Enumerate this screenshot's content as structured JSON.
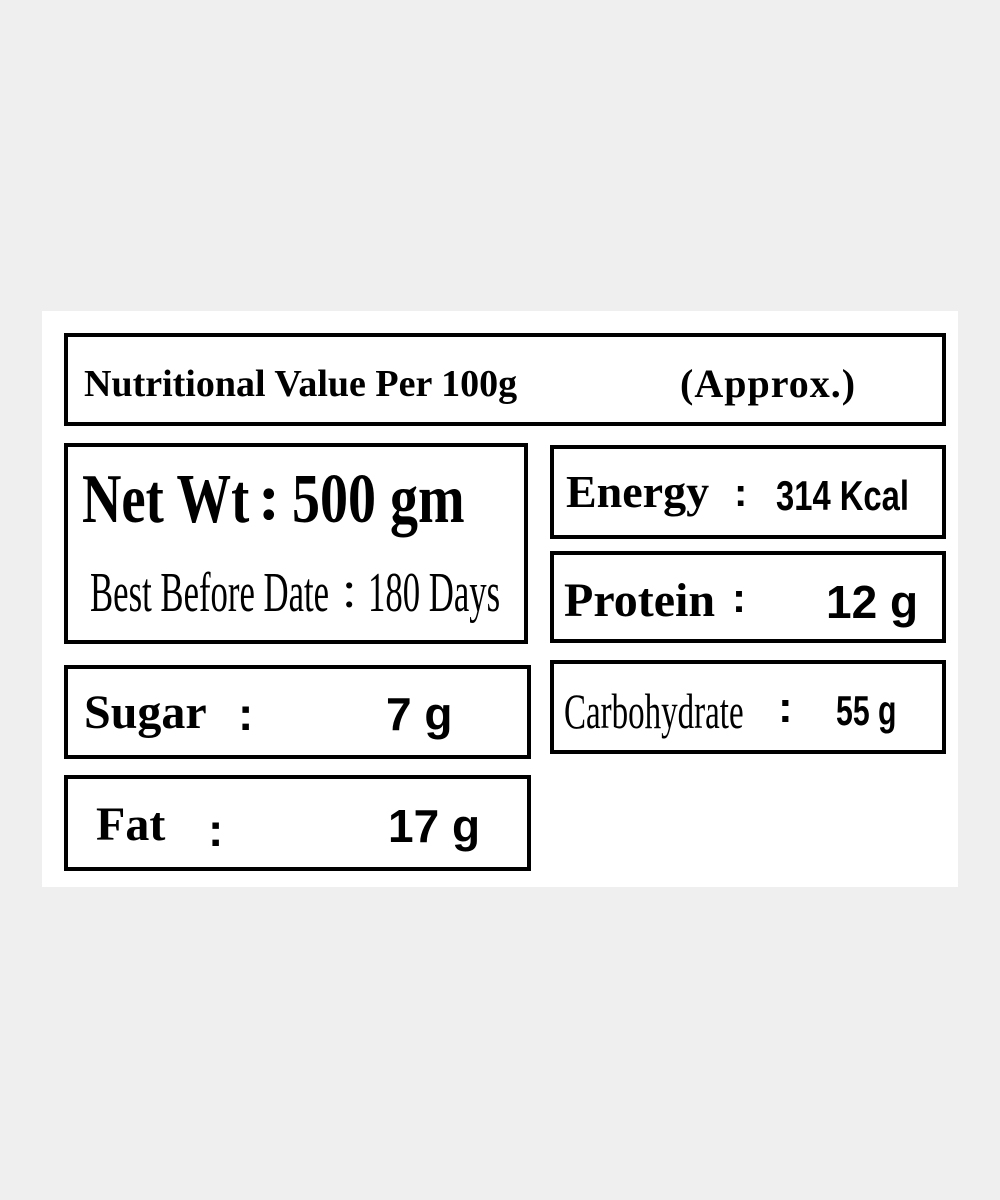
{
  "title": {
    "text": "Nutritional Value Per 100g",
    "note": "(Approx.)"
  },
  "net_weight": {
    "label": "Net Wt",
    "separator": ":",
    "value": "500 gm"
  },
  "best_before": {
    "label": "Best Before Date",
    "separator": ":",
    "value": "180 Days"
  },
  "nutrients": [
    {
      "label": "Energy",
      "separator": ":",
      "value": "314 Kcal"
    },
    {
      "label": "Protein",
      "separator": ":",
      "value": "12 g"
    },
    {
      "label": "Carbohydrate",
      "separator": ":",
      "value": "55 g"
    },
    {
      "label": "Sugar",
      "separator": ":",
      "value": "7 g"
    },
    {
      "label": "Fat",
      "separator": ":",
      "value": "17 g"
    }
  ]
}
